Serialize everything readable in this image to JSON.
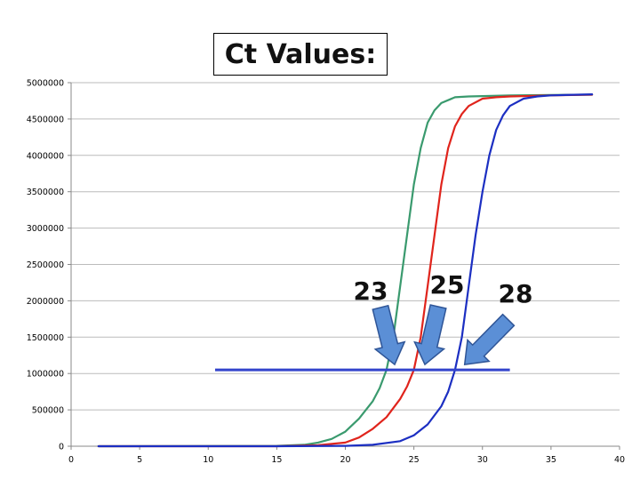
{
  "title": "Ct Values:",
  "colors": {
    "green": "#3a9a6e",
    "red": "#e0241c",
    "blue": "#1c2fc2",
    "threshold": "#3344cc",
    "arrow_fill": "#5b8fd6",
    "arrow_stroke": "#2f5597",
    "grid": "#bbbbbb"
  },
  "chart_data": {
    "type": "line",
    "title": "Ct Values:",
    "xlabel": "",
    "ylabel": "",
    "xlim": [
      0,
      40
    ],
    "ylim": [
      0,
      5000000
    ],
    "x_ticks": [
      0,
      5,
      10,
      15,
      20,
      25,
      30,
      35,
      40
    ],
    "y_ticks": [
      0,
      500000,
      1000000,
      1500000,
      2000000,
      2500000,
      3000000,
      3500000,
      4000000,
      4500000,
      5000000
    ],
    "grid": "horizontal",
    "series": [
      {
        "color": "#3a9a6e",
        "x": [
          2,
          15,
          17,
          18,
          19,
          20,
          21,
          22,
          22.5,
          23,
          23.5,
          24,
          24.5,
          25,
          25.5,
          26,
          26.5,
          27,
          28,
          29,
          30,
          31,
          32,
          35,
          38
        ],
        "y": [
          0,
          5000,
          20000,
          50000,
          100000,
          200000,
          380000,
          620000,
          800000,
          1050000,
          1500000,
          2200000,
          2900000,
          3600000,
          4100000,
          4450000,
          4620000,
          4720000,
          4800000,
          4810000,
          4815000,
          4820000,
          4825000,
          4830000,
          4835000
        ]
      },
      {
        "color": "#e0241c",
        "x": [
          2,
          15,
          18,
          20,
          21,
          22,
          23,
          24,
          24.5,
          25,
          25.5,
          26,
          26.5,
          27,
          27.5,
          28,
          28.5,
          29,
          30,
          31,
          32,
          35,
          38
        ],
        "y": [
          0,
          0,
          15000,
          50000,
          120000,
          240000,
          400000,
          650000,
          820000,
          1050000,
          1500000,
          2200000,
          2900000,
          3600000,
          4100000,
          4400000,
          4570000,
          4680000,
          4780000,
          4800000,
          4810000,
          4825000,
          4835000
        ]
      },
      {
        "color": "#1c2fc2",
        "x": [
          2,
          15,
          20,
          22,
          24,
          25,
          26,
          27,
          27.5,
          28,
          28.5,
          29,
          29.5,
          30,
          30.5,
          31,
          31.5,
          32,
          33,
          34,
          35,
          38
        ],
        "y": [
          0,
          0,
          5000,
          20000,
          70000,
          150000,
          300000,
          550000,
          750000,
          1050000,
          1500000,
          2200000,
          2900000,
          3500000,
          4000000,
          4350000,
          4550000,
          4680000,
          4780000,
          4810000,
          4825000,
          4840000
        ]
      }
    ],
    "threshold": {
      "y": 1050000,
      "x_start": 10.5,
      "x_end": 32
    },
    "annotations": [
      {
        "text": "23",
        "ct": 23
      },
      {
        "text": "25",
        "ct": 25
      },
      {
        "text": "28",
        "ct": 28
      }
    ]
  }
}
